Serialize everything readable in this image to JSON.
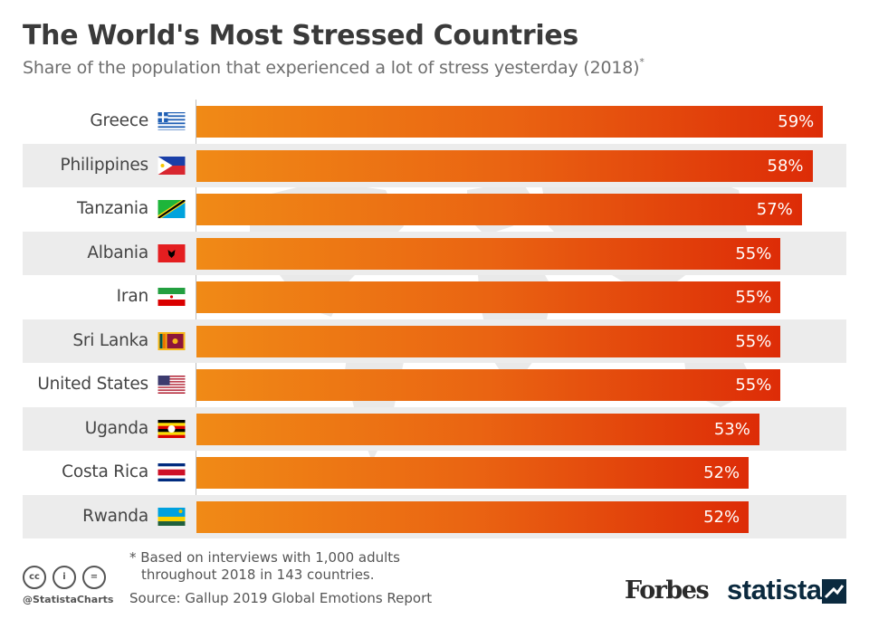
{
  "header": {
    "title": "The World's Most Stressed Countries",
    "subtitle": "Share of the population that experienced a lot of stress yesterday (2018)",
    "subtitle_mark": "*"
  },
  "chart_data": {
    "type": "bar",
    "orientation": "horizontal",
    "title": "The World's Most Stressed Countries",
    "subtitle": "Share of the population that experienced a lot of stress yesterday (2018)*",
    "xlabel": "",
    "ylabel": "",
    "unit": "%",
    "xlim": [
      0,
      60
    ],
    "grid": false,
    "categories": [
      "Greece",
      "Philippines",
      "Tanzania",
      "Albania",
      "Iran",
      "Sri Lanka",
      "United States",
      "Uganda",
      "Costa Rica",
      "Rwanda"
    ],
    "values": [
      59,
      58,
      57,
      55,
      55,
      55,
      55,
      53,
      52,
      52
    ],
    "data_labels": [
      "59%",
      "58%",
      "57%",
      "55%",
      "55%",
      "55%",
      "55%",
      "53%",
      "52%",
      "52%"
    ],
    "flags": [
      "greece-flag",
      "philippines-flag",
      "tanzania-flag",
      "albania-flag",
      "iran-flag",
      "sri-lanka-flag",
      "united-states-flag",
      "uganda-flag",
      "costa-rica-flag",
      "rwanda-flag"
    ],
    "bar_gradient": [
      "#f08a16",
      "#dd2c07"
    ]
  },
  "footer": {
    "note_line1": "* Based on interviews with 1,000 adults",
    "note_line2": "throughout 2018 in 143 countries.",
    "source": "Source: Gallup 2019 Global Emotions Report",
    "handle": "@StatistaCharts",
    "cc_icons": [
      "cc",
      "i",
      "="
    ],
    "brand1": "Forbes",
    "brand2": "statista"
  }
}
